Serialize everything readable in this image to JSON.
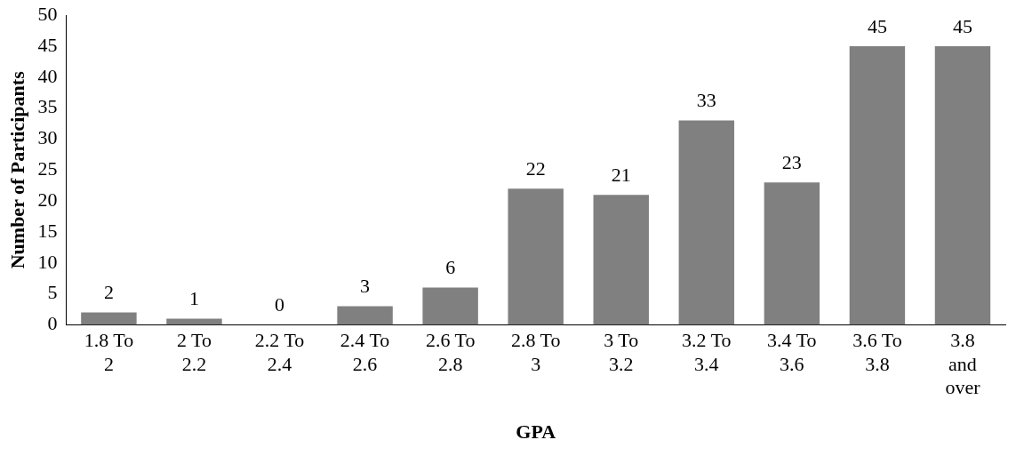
{
  "chart_data": {
    "type": "bar",
    "xlabel": "GPA",
    "ylabel": "Number of Participants",
    "categories": [
      "1.8 To 2",
      "2 To 2.2",
      "2.2 To 2.4",
      "2.4 To 2.6",
      "2.6 To 2.8",
      "2.8 To 3",
      "3 To 3.2",
      "3.2 To 3.4",
      "3.4 To 3.6",
      "3.6 To 3.8",
      "3.8 and over"
    ],
    "values": [
      2,
      1,
      0,
      3,
      6,
      22,
      21,
      33,
      23,
      45,
      45
    ],
    "color": "#808080",
    "ylim": [
      0,
      50
    ],
    "yticks": [
      0,
      5,
      10,
      15,
      20,
      25,
      30,
      35,
      40,
      45,
      50
    ],
    "data_labels": true,
    "grid": false,
    "legend": false
  }
}
